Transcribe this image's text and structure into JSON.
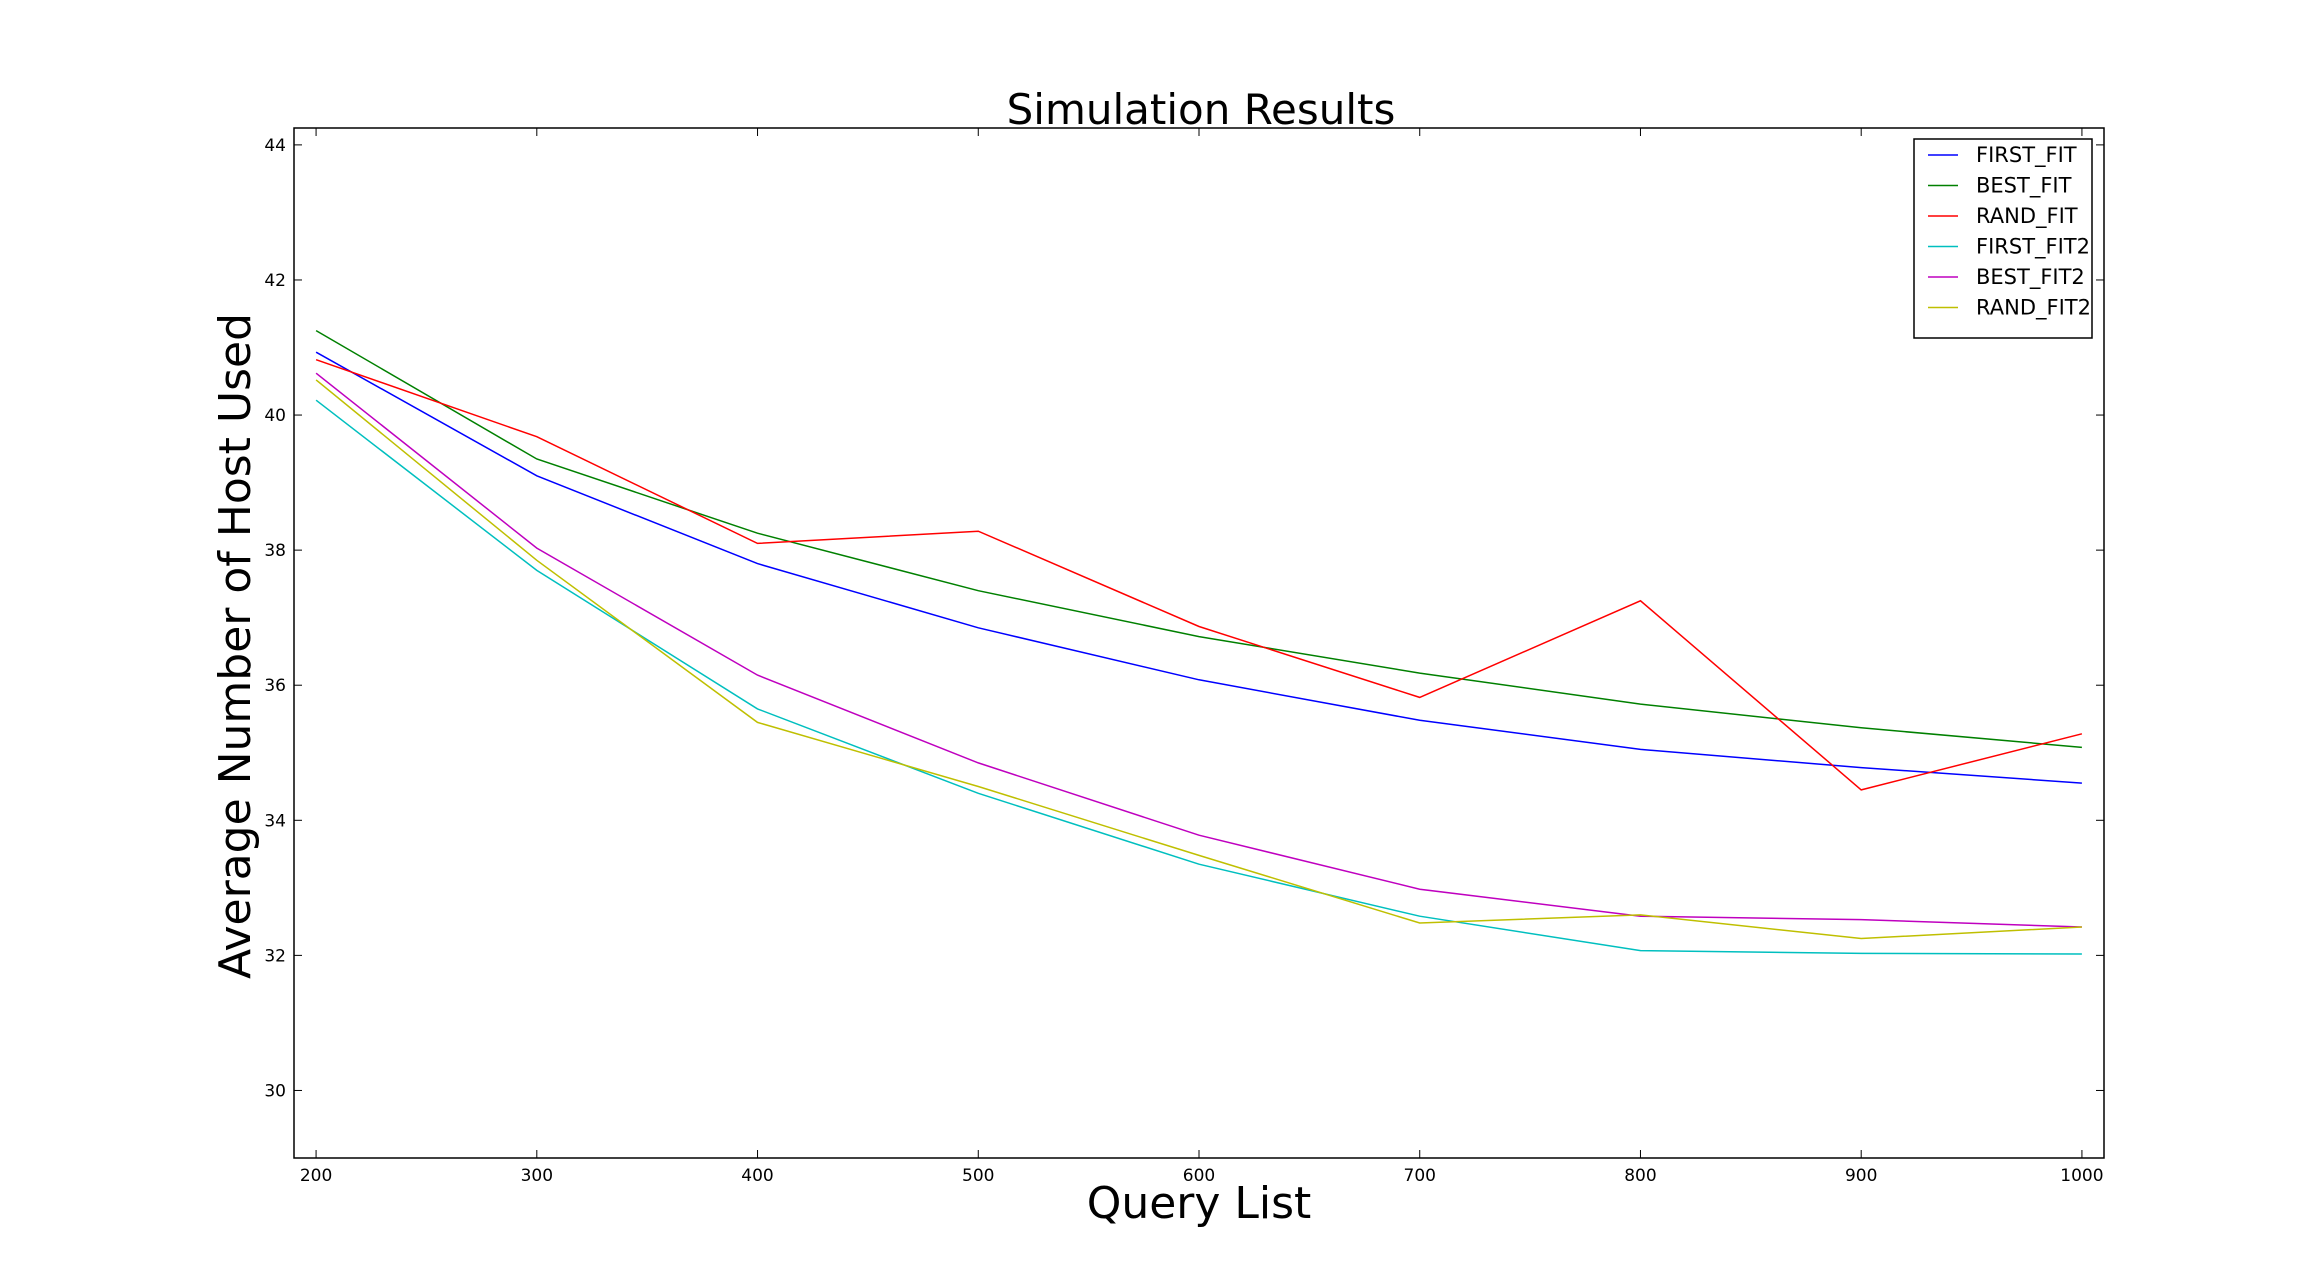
{
  "chart_data": {
    "type": "line",
    "title": "Simulation Results",
    "xlabel": "Query List",
    "ylabel": "Average Number of Host Used",
    "x": [
      200,
      300,
      400,
      500,
      600,
      700,
      800,
      900,
      1000
    ],
    "xlim": [
      190,
      1010
    ],
    "ylim": [
      29,
      44.25
    ],
    "xticks": [
      200,
      300,
      400,
      500,
      600,
      700,
      800,
      900,
      1000
    ],
    "yticks": [
      30,
      32,
      34,
      36,
      38,
      40,
      42,
      44
    ],
    "grid": false,
    "legend_position": "top-right",
    "series": [
      {
        "name": "FIRST_FIT",
        "color": "#0000ff",
        "values": [
          40.93,
          39.1,
          37.8,
          36.85,
          36.08,
          35.48,
          35.05,
          34.78,
          34.55
        ]
      },
      {
        "name": "BEST_FIT",
        "color": "#008000",
        "values": [
          41.25,
          39.35,
          38.25,
          37.4,
          36.72,
          36.18,
          35.72,
          35.37,
          35.08
        ]
      },
      {
        "name": "RAND_FIT",
        "color": "#ff0000",
        "values": [
          40.82,
          39.68,
          38.1,
          38.28,
          36.87,
          35.82,
          37.25,
          34.45,
          35.28
        ]
      },
      {
        "name": "FIRST_FIT2",
        "color": "#00bfbf",
        "values": [
          40.22,
          37.7,
          35.65,
          34.4,
          33.35,
          32.58,
          32.07,
          32.03,
          32.02
        ]
      },
      {
        "name": "BEST_FIT2",
        "color": "#bf00bf",
        "values": [
          40.62,
          38.03,
          36.15,
          34.85,
          33.78,
          32.98,
          32.58,
          32.53,
          32.42
        ]
      },
      {
        "name": "RAND_FIT2",
        "color": "#bfbf00",
        "values": [
          40.52,
          37.85,
          35.45,
          34.5,
          33.48,
          32.48,
          32.6,
          32.25,
          32.42
        ]
      }
    ]
  }
}
